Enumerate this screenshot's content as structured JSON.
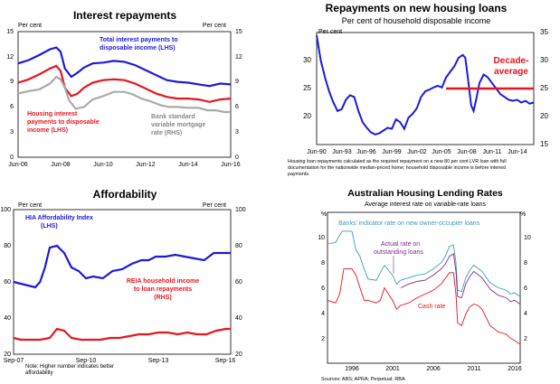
{
  "chart_data": [
    {
      "type": "line",
      "title": "Interest repayments",
      "left_unit": "Per cent",
      "right_unit": "Per cent",
      "ylim": [
        0,
        15
      ],
      "y_ticks": [
        "0",
        "3",
        "6",
        "9",
        "12",
        "15"
      ],
      "x_ticks": [
        "Jun-06",
        "Jun-08",
        "Jun-10",
        "Jun-12",
        "Jun-14",
        "Jun-16"
      ],
      "xlim": [
        2006.5,
        2016.5
      ],
      "series": [
        {
          "name": "Total interest payments to disposable income (LHS)",
          "color": "#1a1adc",
          "x": [
            2006.5,
            2007.0,
            2007.5,
            2008.0,
            2008.3,
            2008.5,
            2008.7,
            2009.0,
            2009.3,
            2009.6,
            2010.0,
            2010.5,
            2011.0,
            2011.5,
            2012.0,
            2012.5,
            2013.0,
            2013.5,
            2014.0,
            2014.5,
            2015.0,
            2015.5,
            2016.0,
            2016.5
          ],
          "y": [
            11.2,
            11.6,
            12.2,
            12.9,
            13.1,
            12.6,
            10.6,
            9.6,
            10.1,
            10.7,
            11.2,
            11.3,
            11.5,
            11.4,
            11.0,
            10.4,
            9.8,
            9.2,
            9.0,
            8.9,
            8.7,
            8.5,
            8.8,
            8.7
          ]
        },
        {
          "name": "Housing interest payments to disposable income (LHS)",
          "color": "#e8141e",
          "x": [
            2006.5,
            2007.0,
            2007.5,
            2008.0,
            2008.3,
            2008.5,
            2008.7,
            2009.0,
            2009.3,
            2009.6,
            2010.0,
            2010.5,
            2011.0,
            2011.5,
            2012.0,
            2012.5,
            2013.0,
            2013.5,
            2014.0,
            2014.5,
            2015.0,
            2015.5,
            2016.0,
            2016.5
          ],
          "y": [
            8.9,
            9.3,
            9.9,
            10.6,
            10.9,
            10.3,
            8.3,
            7.3,
            7.6,
            8.3,
            8.9,
            9.2,
            9.3,
            9.2,
            8.8,
            8.2,
            7.6,
            7.2,
            7.0,
            7.0,
            6.9,
            6.6,
            6.9,
            7.0
          ]
        },
        {
          "name": "Bank standard variable mortgage rate (RHS)",
          "color": "#a9a9a9",
          "x": [
            2006.5,
            2007.0,
            2007.5,
            2008.0,
            2008.3,
            2008.5,
            2008.7,
            2008.9,
            2009.2,
            2009.6,
            2010.0,
            2010.5,
            2011.0,
            2011.5,
            2011.9,
            2012.3,
            2012.7,
            2013.2,
            2013.6,
            2014.0,
            2014.5,
            2015.0,
            2015.4,
            2015.8,
            2016.2,
            2016.5
          ],
          "y": [
            7.6,
            7.9,
            8.1,
            8.8,
            9.6,
            9.3,
            8.3,
            6.8,
            5.8,
            6.0,
            6.9,
            7.3,
            7.8,
            7.8,
            7.5,
            7.0,
            6.7,
            6.2,
            6.0,
            6.0,
            5.9,
            5.9,
            5.6,
            5.6,
            5.4,
            5.4
          ]
        }
      ],
      "labels": [
        {
          "text": "Total interest payments to",
          "color": "#1a1adc"
        },
        {
          "text": "disposable income (LHS)",
          "color": "#1a1adc"
        },
        {
          "text": "Housing interest",
          "color": "#e8141e"
        },
        {
          "text": "payments to disposable",
          "color": "#e8141e"
        },
        {
          "text": "income (LHS)",
          "color": "#e8141e"
        },
        {
          "text": "Bank standard",
          "color": "#888888"
        },
        {
          "text": "variable mortgage",
          "color": "#888888"
        },
        {
          "text": "rate (RHS)",
          "color": "#888888"
        }
      ]
    },
    {
      "type": "line",
      "title": "Repayments on new housing loans",
      "subtitle": "Per cent of household disposable income",
      "left_unit": "Per cent",
      "ylim": [
        15,
        35
      ],
      "y_ticks": [
        "15",
        "20",
        "25",
        "30",
        "35"
      ],
      "x_ticks": [
        "Jun-90",
        "Jun-93",
        "Jun-96",
        "Jun-99",
        "Jun-02",
        "Jun-05",
        "Jun-08",
        "Jun-11",
        "Jun-14"
      ],
      "xlim": [
        1990.5,
        2016.5
      ],
      "series": [
        {
          "name": "Repayments on new housing loans",
          "color": "#1a1adc",
          "x": [
            1990.5,
            1991.0,
            1991.5,
            1992.0,
            1992.5,
            1993.0,
            1993.5,
            1994.0,
            1994.5,
            1995.0,
            1995.5,
            1996.0,
            1996.5,
            1997.0,
            1997.5,
            1998.0,
            1998.5,
            1999.0,
            1999.5,
            2000.0,
            2000.5,
            2001.0,
            2001.5,
            2002.0,
            2002.5,
            2003.0,
            2003.5,
            2004.0,
            2004.5,
            2005.0,
            2005.5,
            2006.0,
            2006.5,
            2007.0,
            2007.5,
            2008.0,
            2008.3,
            2008.6,
            2009.0,
            2009.3,
            2009.6,
            2010.0,
            2010.5,
            2011.0,
            2011.5,
            2012.0,
            2012.5,
            2013.0,
            2013.5,
            2014.0,
            2014.5,
            2015.0,
            2015.5,
            2016.0,
            2016.5
          ],
          "y": [
            34.5,
            30.0,
            27.0,
            24.5,
            22.5,
            21.0,
            21.3,
            23.0,
            23.8,
            23.5,
            21.0,
            19.0,
            18.0,
            17.2,
            16.8,
            17.0,
            17.5,
            18.0,
            17.8,
            19.5,
            19.0,
            17.8,
            19.8,
            20.5,
            21.5,
            23.5,
            24.5,
            24.8,
            25.2,
            25.5,
            25.2,
            27.0,
            28.0,
            29.0,
            30.5,
            31.0,
            30.5,
            27.0,
            22.0,
            21.0,
            23.0,
            26.0,
            27.5,
            27.0,
            26.0,
            25.0,
            24.0,
            23.5,
            23.0,
            22.8,
            23.0,
            22.5,
            22.8,
            22.3,
            22.5
          ]
        }
      ],
      "average": {
        "label_1": "Decade-",
        "label_2": "average",
        "value": 25,
        "from": 2006.0,
        "to": 2016.5,
        "color": "#e8141e"
      },
      "footnote": [
        "Housing loan repayments calculated as the required repayment on a new 80 per cent LVR loan with full",
        "documentation for the nationwide median-priced home; household disposable income is before interest",
        "payments."
      ]
    },
    {
      "type": "line",
      "title": "Affordability",
      "left_unit": "Per cent",
      "right_unit": "Per cent",
      "ylim": [
        20,
        100
      ],
      "y_ticks": [
        "20",
        "40",
        "60",
        "80",
        "100"
      ],
      "x_ticks": [
        "Sep-07",
        "Sep-10",
        "Sep-13",
        "Sep-16"
      ],
      "xlim": [
        2007.7,
        2016.7
      ],
      "series": [
        {
          "name": "HIA Affordability Index (LHS)",
          "color": "#1a1adc",
          "x": [
            2007.7,
            2008.0,
            2008.3,
            2008.6,
            2008.8,
            2009.0,
            2009.2,
            2009.5,
            2009.8,
            2010.1,
            2010.4,
            2010.7,
            2011.0,
            2011.4,
            2011.8,
            2012.2,
            2012.6,
            2013.0,
            2013.3,
            2013.6,
            2014.0,
            2014.4,
            2014.8,
            2015.2,
            2015.6,
            2016.0,
            2016.3,
            2016.7
          ],
          "y": [
            60,
            59,
            58,
            57,
            60,
            68,
            79,
            80,
            76,
            68,
            66,
            62,
            63,
            62,
            66,
            67,
            70,
            72,
            72,
            74,
            74,
            75,
            74,
            73,
            72,
            76,
            76,
            76
          ]
        },
        {
          "name": "REIA household income to loan repayments (RHS)",
          "color": "#e8141e",
          "x": [
            2007.7,
            2008.0,
            2008.4,
            2008.8,
            2009.2,
            2009.5,
            2009.8,
            2010.1,
            2010.5,
            2010.9,
            2011.3,
            2011.7,
            2012.1,
            2012.5,
            2012.9,
            2013.3,
            2013.7,
            2014.1,
            2014.5,
            2014.9,
            2015.3,
            2015.7,
            2016.1,
            2016.5,
            2016.7
          ],
          "y": [
            29,
            28,
            28,
            28,
            29,
            34,
            33,
            29,
            28,
            28,
            28,
            29,
            29,
            30,
            31,
            31,
            32,
            32,
            31,
            32,
            31,
            31,
            33,
            34,
            34
          ]
        }
      ],
      "labels": [
        {
          "text": "HIA Affordability Index",
          "color": "#1a1adc"
        },
        {
          "text": "(LHS)",
          "color": "#1a1adc"
        },
        {
          "text": "REIA household income",
          "color": "#e8141e"
        },
        {
          "text": "to loan repayments",
          "color": "#e8141e"
        },
        {
          "text": "(RHS)",
          "color": "#e8141e"
        }
      ],
      "note_1": "Note: Higher number indicates better",
      "note_2": "affordability"
    },
    {
      "type": "line",
      "title": "Australian Housing Lending Rates",
      "subtitle": "Average interest rate on variable-rate loans",
      "left_unit": "%",
      "right_unit": "%",
      "ylim": [
        0,
        12
      ],
      "y_ticks": [
        "2",
        "4",
        "6",
        "8",
        "10"
      ],
      "x_ticks": [
        "1996",
        "2001",
        "2006",
        "2011",
        "2016"
      ],
      "xlim": [
        1993,
        2016.7
      ],
      "series": [
        {
          "name": "Banks' indicator rate on new owner-occupier loans",
          "color": "#3a9cb8",
          "x": [
            1993.0,
            1994.0,
            1994.8,
            1995.0,
            1996.0,
            1996.5,
            1997.0,
            1997.5,
            1998.0,
            1999.0,
            2000.0,
            2001.0,
            2001.5,
            2002.0,
            2003.0,
            2004.0,
            2005.0,
            2006.0,
            2007.0,
            2007.5,
            2008.0,
            2008.5,
            2008.8,
            2009.0,
            2009.5,
            2010.0,
            2010.5,
            2011.0,
            2012.0,
            2013.0,
            2014.0,
            2015.0,
            2015.5,
            2016.0,
            2016.7
          ],
          "y": [
            9.5,
            9.6,
            10.5,
            10.5,
            10.5,
            9.0,
            8.5,
            7.5,
            6.7,
            6.6,
            7.8,
            7.0,
            6.3,
            6.6,
            6.8,
            7.0,
            7.1,
            7.5,
            8.0,
            8.5,
            9.3,
            9.4,
            8.0,
            5.8,
            5.7,
            6.8,
            7.4,
            7.8,
            7.3,
            6.4,
            6.0,
            5.8,
            5.5,
            5.6,
            5.3
          ]
        },
        {
          "name": "Actual rate on outstanding loans",
          "color": "#7b2c8f",
          "x": [
            2002.0,
            2003.0,
            2004.0,
            2005.0,
            2006.0,
            2007.0,
            2007.5,
            2008.0,
            2008.5,
            2008.8,
            2009.0,
            2009.5,
            2010.0,
            2010.5,
            2011.0,
            2012.0,
            2013.0,
            2014.0,
            2015.0,
            2015.5,
            2016.0,
            2016.7
          ],
          "y": [
            6.0,
            6.3,
            6.5,
            6.6,
            7.0,
            7.5,
            7.9,
            8.5,
            8.7,
            7.3,
            5.3,
            5.2,
            6.3,
            6.9,
            7.3,
            6.8,
            5.9,
            5.4,
            5.2,
            4.9,
            5.0,
            4.7
          ]
        },
        {
          "name": "Cash rate",
          "color": "#e8141e",
          "x": [
            1993.0,
            1994.0,
            1994.5,
            1995.0,
            1996.0,
            1996.5,
            1997.0,
            1997.5,
            1998.0,
            1999.0,
            1999.5,
            2000.0,
            2001.0,
            2001.5,
            2002.0,
            2003.0,
            2004.0,
            2005.0,
            2006.0,
            2007.0,
            2008.0,
            2008.5,
            2008.8,
            2009.0,
            2009.5,
            2010.0,
            2010.5,
            2011.0,
            2011.5,
            2012.0,
            2013.0,
            2014.0,
            2015.0,
            2015.5,
            2016.0,
            2016.7
          ],
          "y": [
            5.0,
            4.8,
            5.5,
            7.5,
            7.5,
            7.0,
            6.0,
            5.0,
            5.0,
            4.8,
            5.0,
            6.0,
            5.0,
            4.3,
            4.6,
            4.8,
            5.2,
            5.5,
            5.8,
            6.3,
            7.2,
            7.2,
            5.5,
            3.2,
            3.0,
            3.9,
            4.5,
            4.7,
            4.6,
            4.3,
            3.0,
            2.5,
            2.3,
            2.0,
            1.8,
            1.5
          ]
        }
      ],
      "labels": [
        {
          "text": "Banks' indicator rate on new owner-occupier loans",
          "color": "#3a9cb8"
        },
        {
          "text": "Actual rate on",
          "color": "#7b2c8f"
        },
        {
          "text": "outstanding loans",
          "color": "#7b2c8f"
        },
        {
          "text": "Cash rate",
          "color": "#e8141e"
        }
      ],
      "sources": "Sources:  ABS; APRA; Perpetual; RBA"
    }
  ]
}
